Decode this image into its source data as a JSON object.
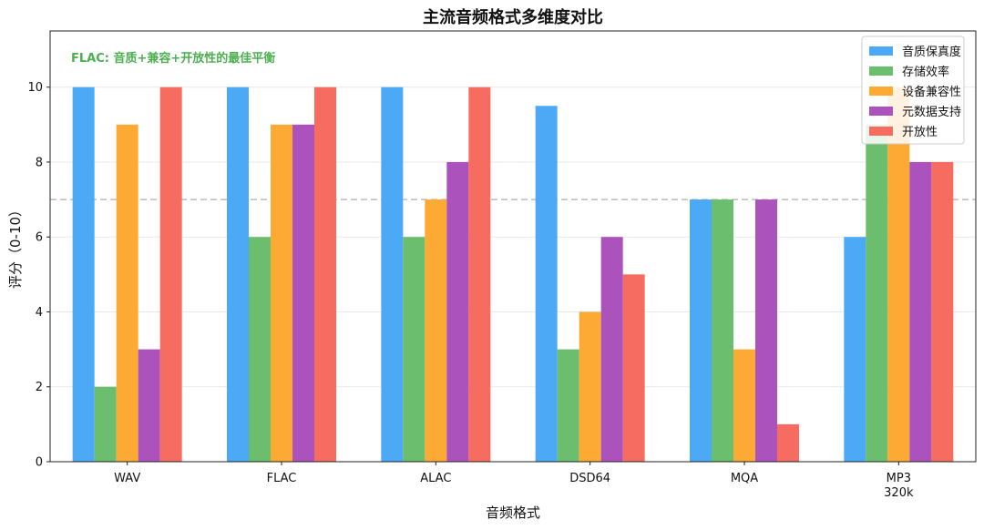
{
  "chart_data": {
    "type": "bar",
    "title": "主流音频格式多维度对比",
    "xlabel": "音频格式",
    "ylabel": "评分（0-10）",
    "categories": [
      "WAV",
      "FLAC",
      "ALAC",
      "DSD64",
      "MQA",
      "MP3\n320k"
    ],
    "series": [
      {
        "name": "音质保真度",
        "color": "#4BA9F5",
        "values": [
          10,
          10,
          10,
          9.5,
          7,
          6
        ]
      },
      {
        "name": "存储效率",
        "color": "#6CBE6F",
        "values": [
          2,
          6,
          6,
          3,
          7,
          9
        ]
      },
      {
        "name": "设备兼容性",
        "color": "#FCAA33",
        "values": [
          9,
          9,
          7,
          4,
          3,
          10
        ]
      },
      {
        "name": "元数据支持",
        "color": "#AC52BD",
        "values": [
          3,
          9,
          8,
          6,
          7,
          8
        ]
      },
      {
        "name": "开放性",
        "color": "#F66C61",
        "values": [
          10,
          10,
          10,
          5,
          1,
          8
        ]
      }
    ],
    "ylim": [
      0,
      11.5
    ],
    "yticks": [
      0,
      2,
      4,
      6,
      8,
      10
    ],
    "reference_line": {
      "y": 7,
      "style": "dashed",
      "color": "#bbbbbb"
    },
    "annotation": {
      "text": "FLAC: 音质+兼容+开放性的最佳平衡",
      "color": "#4CAF50",
      "position": "top-left"
    },
    "grid": "horizontal",
    "legend_position": "top-right"
  }
}
